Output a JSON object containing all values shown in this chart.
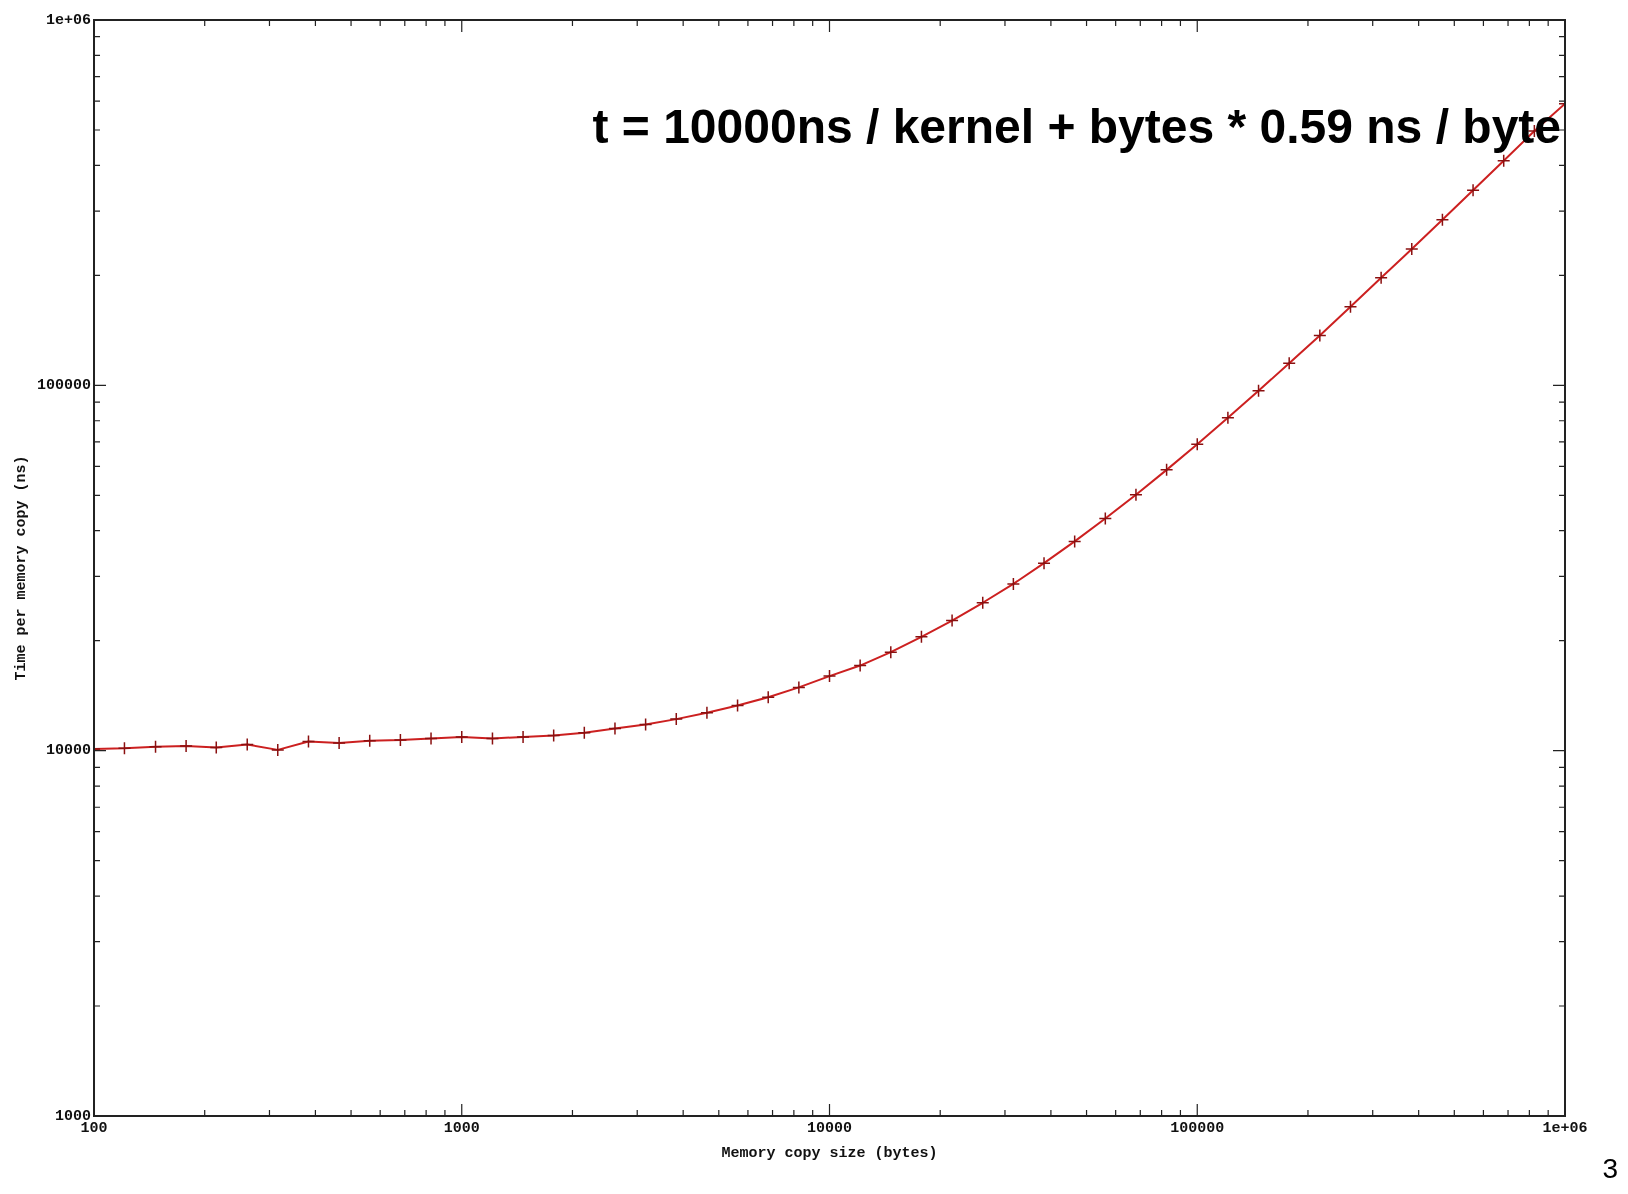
{
  "chart_data": {
    "type": "line",
    "xlabel": "Memory copy size (bytes)",
    "ylabel": "Time per memory copy (ns)",
    "annotations": [
      "t = 10000ns / kernel + bytes * 0.59 ns / byte",
      "3"
    ],
    "log": "xy",
    "marker": "cross",
    "line_style": "solid",
    "legend": false,
    "xlim": [
      100,
      1000000
    ],
    "ylim": [
      1000,
      1000000
    ],
    "xticks": [
      100,
      {
        "value": 200,
        "label": null
      },
      {
        "value": 300,
        "label": null
      },
      {
        "value": 400,
        "label": null
      },
      {
        "value": 500,
        "label": null
      },
      {
        "value": 600,
        "label": null
      },
      {
        "value": 700,
        "label": null
      },
      {
        "value": 800,
        "label": null
      },
      {
        "value": 900,
        "label": null
      },
      1000,
      {
        "value": 2000,
        "label": null
      },
      {
        "value": 3000,
        "label": null
      },
      {
        "value": 4000,
        "label": null
      },
      {
        "value": 5000,
        "label": null
      },
      {
        "value": 6000,
        "label": null
      },
      {
        "value": 7000,
        "label": null
      },
      {
        "value": 8000,
        "label": null
      },
      {
        "value": 9000,
        "label": null
      },
      10000,
      {
        "value": 20000,
        "label": null
      },
      {
        "value": 30000,
        "label": null
      },
      {
        "value": 40000,
        "label": null
      },
      {
        "value": 50000,
        "label": null
      },
      {
        "value": 60000,
        "label": null
      },
      {
        "value": 70000,
        "label": null
      },
      {
        "value": 80000,
        "label": null
      },
      {
        "value": 90000,
        "label": null
      },
      100000,
      {
        "value": 200000,
        "label": null
      },
      {
        "value": 300000,
        "label": null
      },
      {
        "value": 400000,
        "label": null
      },
      {
        "value": 500000,
        "label": null
      },
      {
        "value": 600000,
        "label": null
      },
      {
        "value": 700000,
        "label": null
      },
      {
        "value": 800000,
        "label": null
      },
      {
        "value": 900000,
        "label": null
      },
      {
        "value": 1000000,
        "label": "1e+06"
      }
    ],
    "yticks": [
      1000,
      {
        "value": 2000,
        "label": null
      },
      {
        "value": 3000,
        "label": null
      },
      {
        "value": 4000,
        "label": null
      },
      {
        "value": 5000,
        "label": null
      },
      {
        "value": 6000,
        "label": null
      },
      {
        "value": 7000,
        "label": null
      },
      {
        "value": 8000,
        "label": null
      },
      {
        "value": 9000,
        "label": null
      },
      10000,
      {
        "value": 20000,
        "label": null
      },
      {
        "value": 30000,
        "label": null
      },
      {
        "value": 40000,
        "label": null
      },
      {
        "value": 50000,
        "label": null
      },
      {
        "value": 60000,
        "label": null
      },
      {
        "value": 70000,
        "label": null
      },
      {
        "value": 80000,
        "label": null
      },
      {
        "value": 90000,
        "label": null
      },
      100000,
      {
        "value": 200000,
        "label": null
      },
      {
        "value": 300000,
        "label": null
      },
      {
        "value": 400000,
        "label": null
      },
      {
        "value": 500000,
        "label": null
      },
      {
        "value": 600000,
        "label": null
      },
      {
        "value": 700000,
        "label": null
      },
      {
        "value": 800000,
        "label": null
      },
      {
        "value": 900000,
        "label": null
      },
      {
        "value": 1000000,
        "label": "1e+06"
      }
    ],
    "x": [
      100,
      121,
      147,
      178,
      215,
      261,
      316,
      383,
      464,
      562,
      681,
      825,
      1000,
      1212,
      1468,
      1778,
      2154,
      2610,
      3162,
      3831,
      4642,
      5623,
      6813,
      8254,
      10000,
      12115,
      14678,
      17783,
      21544,
      26102,
      31623,
      38312,
      46416,
      56234,
      68129,
      82540,
      100000,
      121153,
      146780,
      177828,
      215443,
      261016,
      316228,
      383119,
      464159,
      562341,
      681292,
      825404,
      1000000
    ],
    "series": [
      {
        "color": "#cc2020",
        "values": [
          10100,
          10150,
          10250,
          10300,
          10200,
          10400,
          10050,
          10600,
          10500,
          10650,
          10700,
          10800,
          10900,
          10800,
          10900,
          11000,
          11200,
          11500,
          11800,
          12200,
          12700,
          13300,
          14000,
          14900,
          16000,
          17100,
          18600,
          20500,
          22700,
          25400,
          28600,
          32600,
          37400,
          43200,
          50200,
          58700,
          69000,
          81500,
          96600,
          115000,
          137000,
          164000,
          197000,
          236000,
          284000,
          342000,
          412000,
          497000,
          590000
        ]
      }
    ]
  }
}
